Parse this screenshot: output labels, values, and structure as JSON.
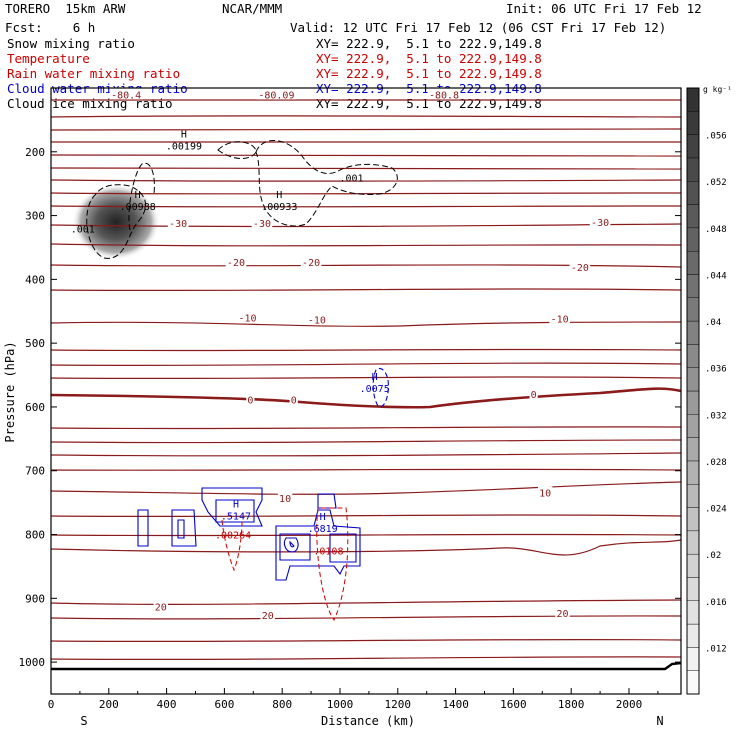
{
  "header": {
    "model": "TORERO  15km ARW",
    "producer": "NCAR/MMM",
    "init": "Init: 06 UTC Fri 17 Feb 12",
    "fcst": "Fcst:    6 h",
    "valid": "Valid: 12 UTC Fri 17 Feb 12 (06 CST Fri 17 Feb 12)"
  },
  "legend": [
    {
      "name": "Snow mixing ratio",
      "xy": "XY= 222.9,  5.1 to 222.9,149.8",
      "color": "#000000"
    },
    {
      "name": "Temperature",
      "xy": "XY= 222.9,  5.1 to 222.9,149.8",
      "color": "#cc0000"
    },
    {
      "name": "Rain water mixing ratio",
      "xy": "XY= 222.9,  5.1 to 222.9,149.8",
      "color": "#cc0000"
    },
    {
      "name": "Cloud water mixing ratio",
      "xy": "XY= 222.9,  5.1 to 222.9,149.8",
      "color": "#0000cc"
    },
    {
      "name": "Cloud ice mixing ratio",
      "xy": "XY= 222.9,  5.1 to 222.9,149.8",
      "color": "#000000"
    }
  ],
  "chart_data": {
    "type": "cross-section contour",
    "xlabel": "Distance (km)",
    "ylabel": "Pressure (hPa)",
    "xlim": [
      0,
      2180
    ],
    "ylim": [
      1050,
      100
    ],
    "x_ticks": [
      0,
      200,
      400,
      600,
      800,
      1000,
      1200,
      1400,
      1600,
      1800,
      2000
    ],
    "y_ticks": [
      200,
      300,
      400,
      500,
      600,
      700,
      800,
      900,
      1000
    ],
    "x_end_labels": {
      "left": "S",
      "right": "N"
    },
    "temperature_contours": [
      {
        "value": -80.4,
        "label": "-80.4",
        "x": 260,
        "p": 110
      },
      {
        "value": -80.09,
        "label": "-80.09",
        "x": 780,
        "p": 110
      },
      {
        "value": -80.8,
        "label": "-80.8",
        "x": 1360,
        "p": 110
      },
      {
        "value": -30,
        "label": "-30",
        "x": 440,
        "p": 312
      },
      {
        "value": -30,
        "label": "-30",
        "x": 730,
        "p": 312
      },
      {
        "value": -30,
        "label": "-30",
        "x": 1900,
        "p": 310
      },
      {
        "value": -20,
        "label": "-20",
        "x": 640,
        "p": 373
      },
      {
        "value": -20,
        "label": "-20",
        "x": 900,
        "p": 373
      },
      {
        "value": -20,
        "label": "-20",
        "x": 1830,
        "p": 381
      },
      {
        "value": -10,
        "label": "-10",
        "x": 680,
        "p": 460
      },
      {
        "value": -10,
        "label": "-10",
        "x": 920,
        "p": 463
      },
      {
        "value": -10,
        "label": "-10",
        "x": 1760,
        "p": 461
      },
      {
        "value": 0,
        "label": "0",
        "x": 690,
        "p": 588
      },
      {
        "value": 0,
        "label": "0",
        "x": 840,
        "p": 588
      },
      {
        "value": 0,
        "label": "0",
        "x": 1670,
        "p": 580
      },
      {
        "value": 10,
        "label": "10",
        "x": 810,
        "p": 743
      },
      {
        "value": 10,
        "label": "10",
        "x": 1710,
        "p": 734
      },
      {
        "value": 20,
        "label": "20",
        "x": 380,
        "p": 913
      },
      {
        "value": 20,
        "label": "20",
        "x": 750,
        "p": 926
      },
      {
        "value": 20,
        "label": "20",
        "x": 1770,
        "p": 923
      }
    ],
    "maxima": [
      {
        "field": "Cloud ice",
        "label": "H",
        "value": ".00199",
        "x": 460,
        "p": 190,
        "color": "#000000"
      },
      {
        "field": "Cloud ice",
        "label": "H",
        "value": ".00988",
        "x": 300,
        "p": 285,
        "color": "#000000"
      },
      {
        "field": "Cloud ice",
        "label": "H",
        "value": ".00933",
        "x": 790,
        "p": 285,
        "color": "#000000"
      },
      {
        "field": "Cloud ice",
        "label": "",
        "value": ".001",
        "x": 1040,
        "p": 240,
        "color": "#000000"
      },
      {
        "field": "Cloud ice",
        "label": "",
        "value": ".001",
        "x": 110,
        "p": 320,
        "color": "#000000"
      },
      {
        "field": "Cloud water",
        "label": "H",
        "value": ".0075",
        "x": 1120,
        "p": 570,
        "color": "#0000cc"
      },
      {
        "field": "Cloud water",
        "label": "H",
        "value": ".5147",
        "x": 640,
        "p": 770,
        "color": "#0000cc"
      },
      {
        "field": "Cloud water",
        "label": "H",
        "value": ".6819",
        "x": 940,
        "p": 790,
        "color": "#0000cc"
      },
      {
        "field": "Rain water",
        "label": "",
        "value": ".00264",
        "x": 630,
        "p": 800,
        "color": "#cc0000"
      },
      {
        "field": "Rain water",
        "label": "",
        "value": ".0108",
        "x": 960,
        "p": 825,
        "color": "#cc0000"
      }
    ],
    "snow_max": {
      "value": 0.056,
      "x": 230,
      "p": 300
    },
    "colorbar": {
      "unit_label": "g kg⁻¹",
      "ticks": [
        ".012",
        ".016",
        ".02",
        ".024",
        ".028",
        ".032",
        ".036",
        ".04",
        ".044",
        ".048",
        ".052",
        ".056"
      ],
      "min": 0.008,
      "max": 0.06
    }
  }
}
